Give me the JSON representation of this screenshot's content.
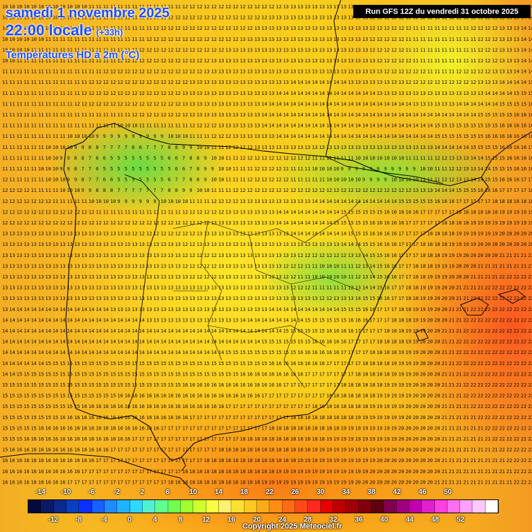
{
  "header": {
    "date": "samedi 1 novembre 2025",
    "time": "22:00 locale",
    "offset": "(+33h)",
    "field": "Températures HD à 2m (°C)"
  },
  "run_banner": "Run GFS 12Z du vendredi 31 octobre 2025",
  "copyright": "Copyright 2025 Meteociel.fr",
  "legend": {
    "top_labels": [
      "-14",
      "-10",
      "-6",
      "-2",
      "2",
      "6",
      "10",
      "14",
      "18",
      "22",
      "26",
      "30",
      "34",
      "38",
      "42",
      "46",
      "50"
    ],
    "bottom_labels": [
      "-12",
      "-8",
      "-4",
      "0",
      "4",
      "8",
      "12",
      "16",
      "20",
      "24",
      "28",
      "32",
      "36",
      "40",
      "44",
      "48",
      "52"
    ],
    "colors": [
      "#050a3c",
      "#0a1a66",
      "#0b2a8f",
      "#0a3fc2",
      "#0a30ff",
      "#1560ff",
      "#1e8cff",
      "#20b2ff",
      "#30d8ff",
      "#50f0d0",
      "#60ff90",
      "#70ff50",
      "#a0ff30",
      "#d0ff30",
      "#f8ff40",
      "#fff070",
      "#ffe030",
      "#ffc820",
      "#ffaa18",
      "#ff8c14",
      "#ff6a14",
      "#ff4a18",
      "#ff2a1e",
      "#e60000",
      "#c00000",
      "#a0000a",
      "#80000a",
      "#600010",
      "#800050",
      "#a00080",
      "#c000b0",
      "#e020d0",
      "#ff40e0",
      "#ff70f0",
      "#ffa0ff",
      "#ffc8ff",
      "#ffffff"
    ]
  },
  "coast_color": "#000000"
}
